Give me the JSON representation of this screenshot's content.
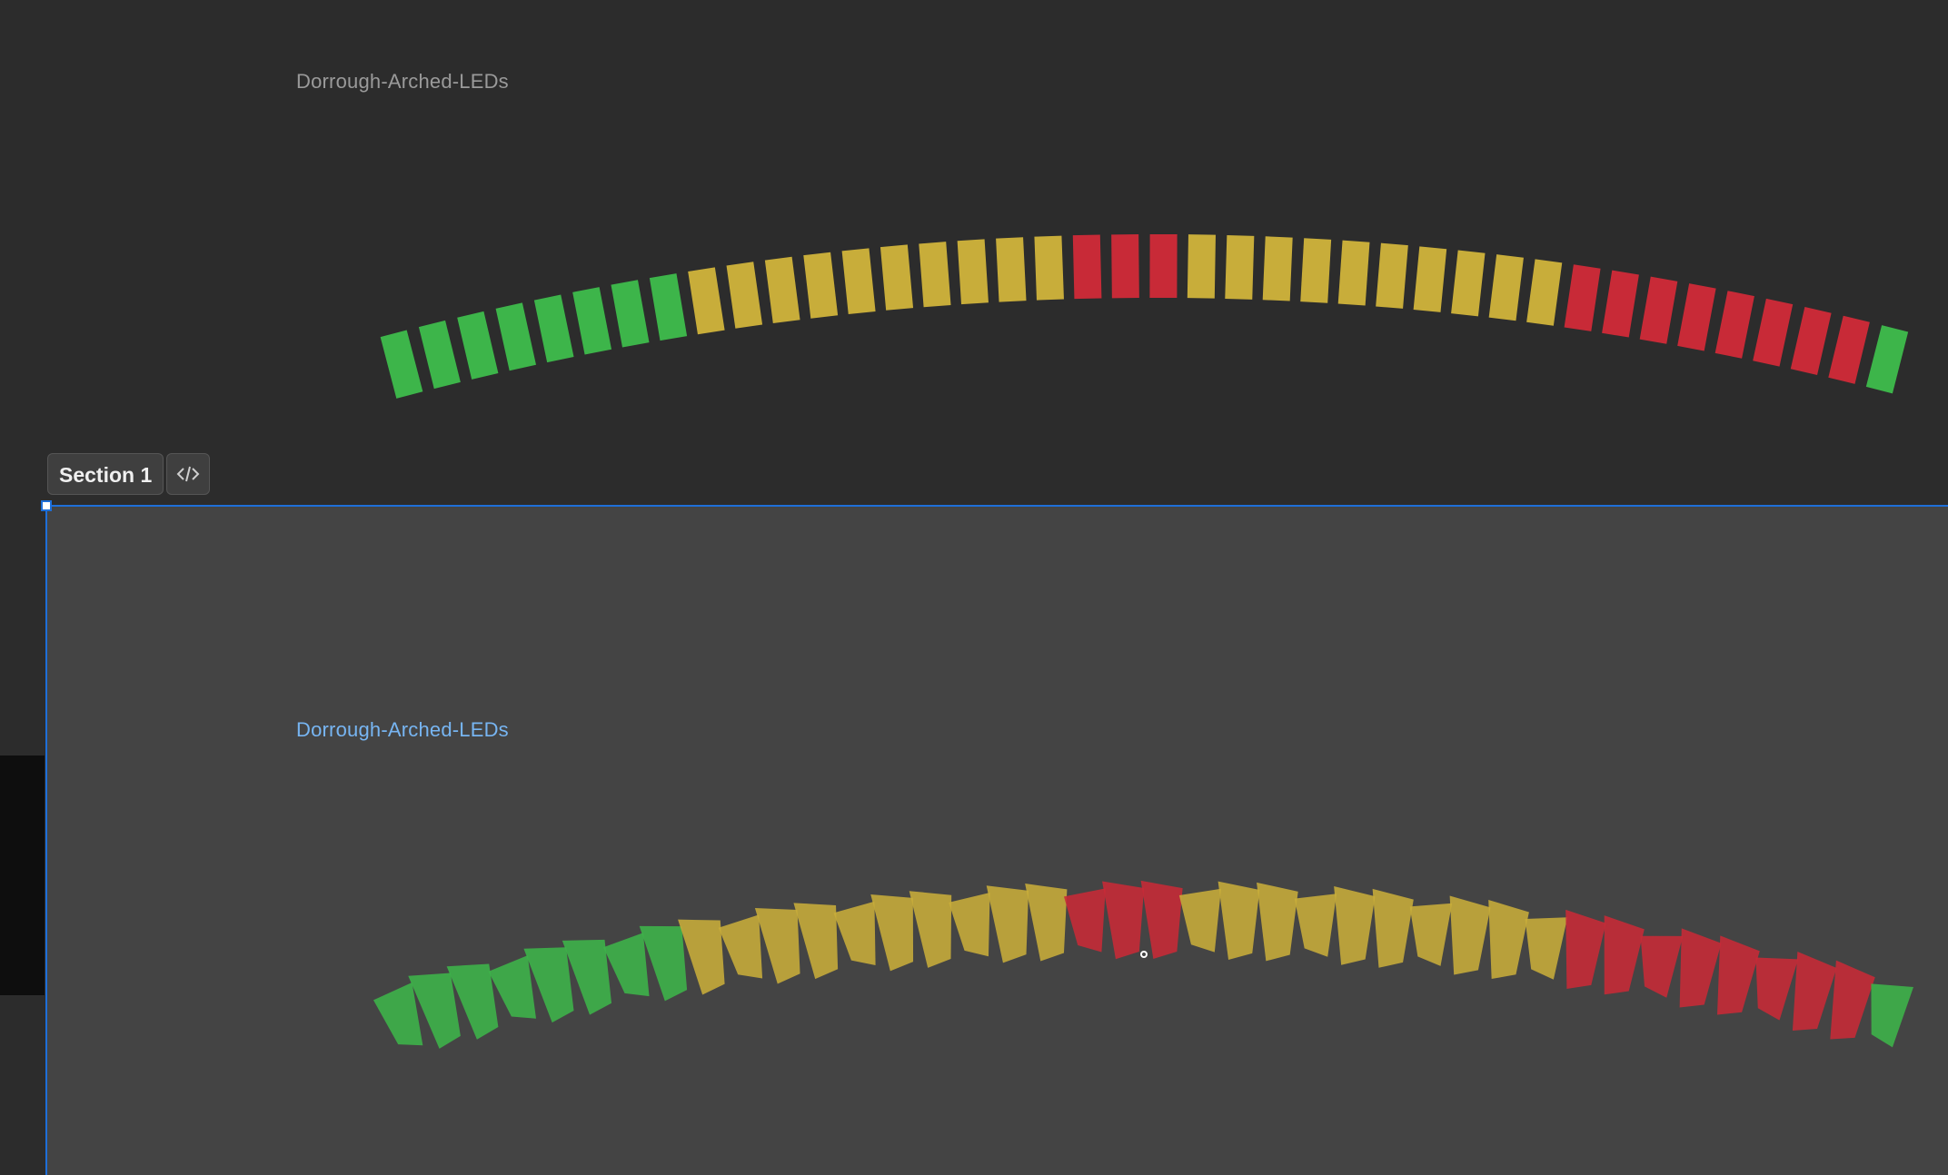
{
  "frames": {
    "top_title": "Dorrough-Arched-LEDs",
    "bottom_title": "Dorrough-Arched-LEDs"
  },
  "section": {
    "label": "Section 1",
    "code_icon": "code-brackets-icon"
  },
  "leds": {
    "count": 40,
    "colors": {
      "green": "#3db54a",
      "yellow": "#c8ad3a",
      "red": "#c82a37"
    },
    "pattern": [
      "green",
      "green",
      "green",
      "green",
      "green",
      "green",
      "green",
      "green",
      "yellow",
      "yellow",
      "yellow",
      "yellow",
      "yellow",
      "yellow",
      "yellow",
      "yellow",
      "yellow",
      "yellow",
      "red",
      "red",
      "red",
      "yellow",
      "yellow",
      "yellow",
      "yellow",
      "yellow",
      "yellow",
      "yellow",
      "yellow",
      "yellow",
      "yellow",
      "red",
      "red",
      "red",
      "red",
      "red",
      "red",
      "red",
      "red",
      "green"
    ]
  },
  "colors": {
    "selection": "#1e6fd9",
    "frame_title_selected": "#77b5f2"
  }
}
